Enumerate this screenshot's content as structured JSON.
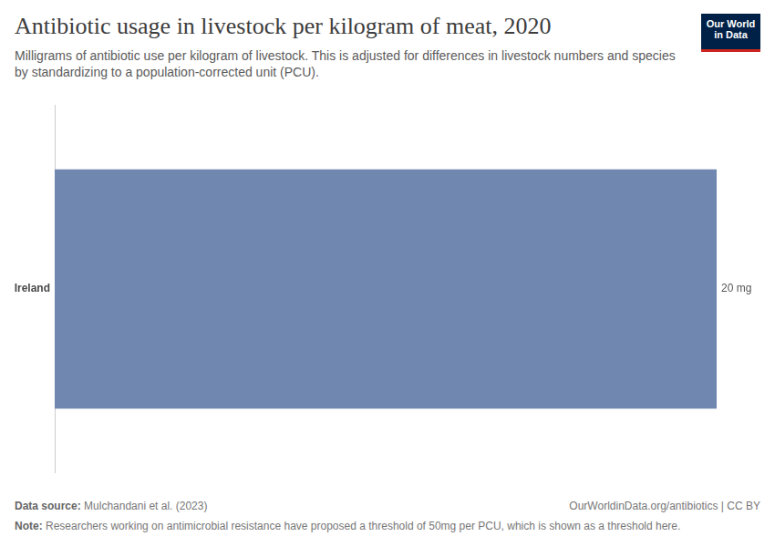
{
  "chart_data": {
    "type": "bar",
    "orientation": "horizontal",
    "title": "Antibiotic usage in livestock per kilogram of meat, 2020",
    "subtitle": "Milligrams of antibiotic use per kilogram of livestock. This is adjusted for differences in livestock numbers and species by standardizing to a population-corrected unit (PCU).",
    "categories": [
      "Ireland"
    ],
    "values": [
      20
    ],
    "value_labels": [
      "20 mg"
    ],
    "color": "#7088b0",
    "xlim": [
      0,
      20
    ],
    "grid": false,
    "data_labels": true,
    "tick_labels": "y",
    "source_label": "Data source:",
    "source": "Mulchandani et al. (2023)",
    "url": "OurWorldinData.org/antibiotics | CC BY",
    "note_label": "Note:",
    "note": "Researchers working on antimicrobial resistance have proposed a threshold of 50mg per PCU, which is shown as a threshold here.",
    "logo": [
      "Our World",
      "in Data"
    ]
  }
}
